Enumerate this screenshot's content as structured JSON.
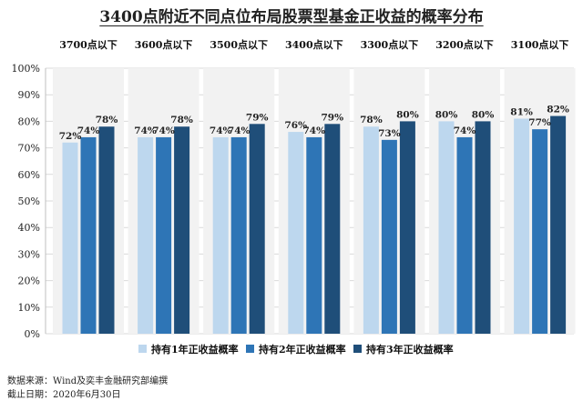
{
  "chart_data": {
    "type": "bar",
    "title": "3400点附近不同点位布局股票型基金正收益的概率分布",
    "categories": [
      "3700点以下",
      "3600点以下",
      "3500点以下",
      "3400点以下",
      "3300点以下",
      "3200点以下",
      "3100点以下"
    ],
    "series": [
      {
        "name": "持有1年正收益概率",
        "color": "#bdd7ee",
        "values": [
          72,
          74,
          74,
          76,
          78,
          80,
          81
        ]
      },
      {
        "name": "持有2年正收益概率",
        "color": "#2e75b6",
        "values": [
          74,
          74,
          74,
          74,
          73,
          74,
          77
        ]
      },
      {
        "name": "持有3年正收益概率",
        "color": "#1f4e79",
        "values": [
          78,
          78,
          79,
          79,
          80,
          80,
          82
        ]
      }
    ],
    "value_suffix": "%",
    "ylim": [
      0,
      100
    ],
    "yticks": [
      0,
      10,
      20,
      30,
      40,
      50,
      60,
      70,
      80,
      90,
      100
    ],
    "legend_position": "bottom",
    "panel_background": "#f2f2f2"
  },
  "footer": {
    "source": "数据来源：Wind及奕丰金融研究部编撰",
    "date": "截止日期：2020年6月30日"
  }
}
